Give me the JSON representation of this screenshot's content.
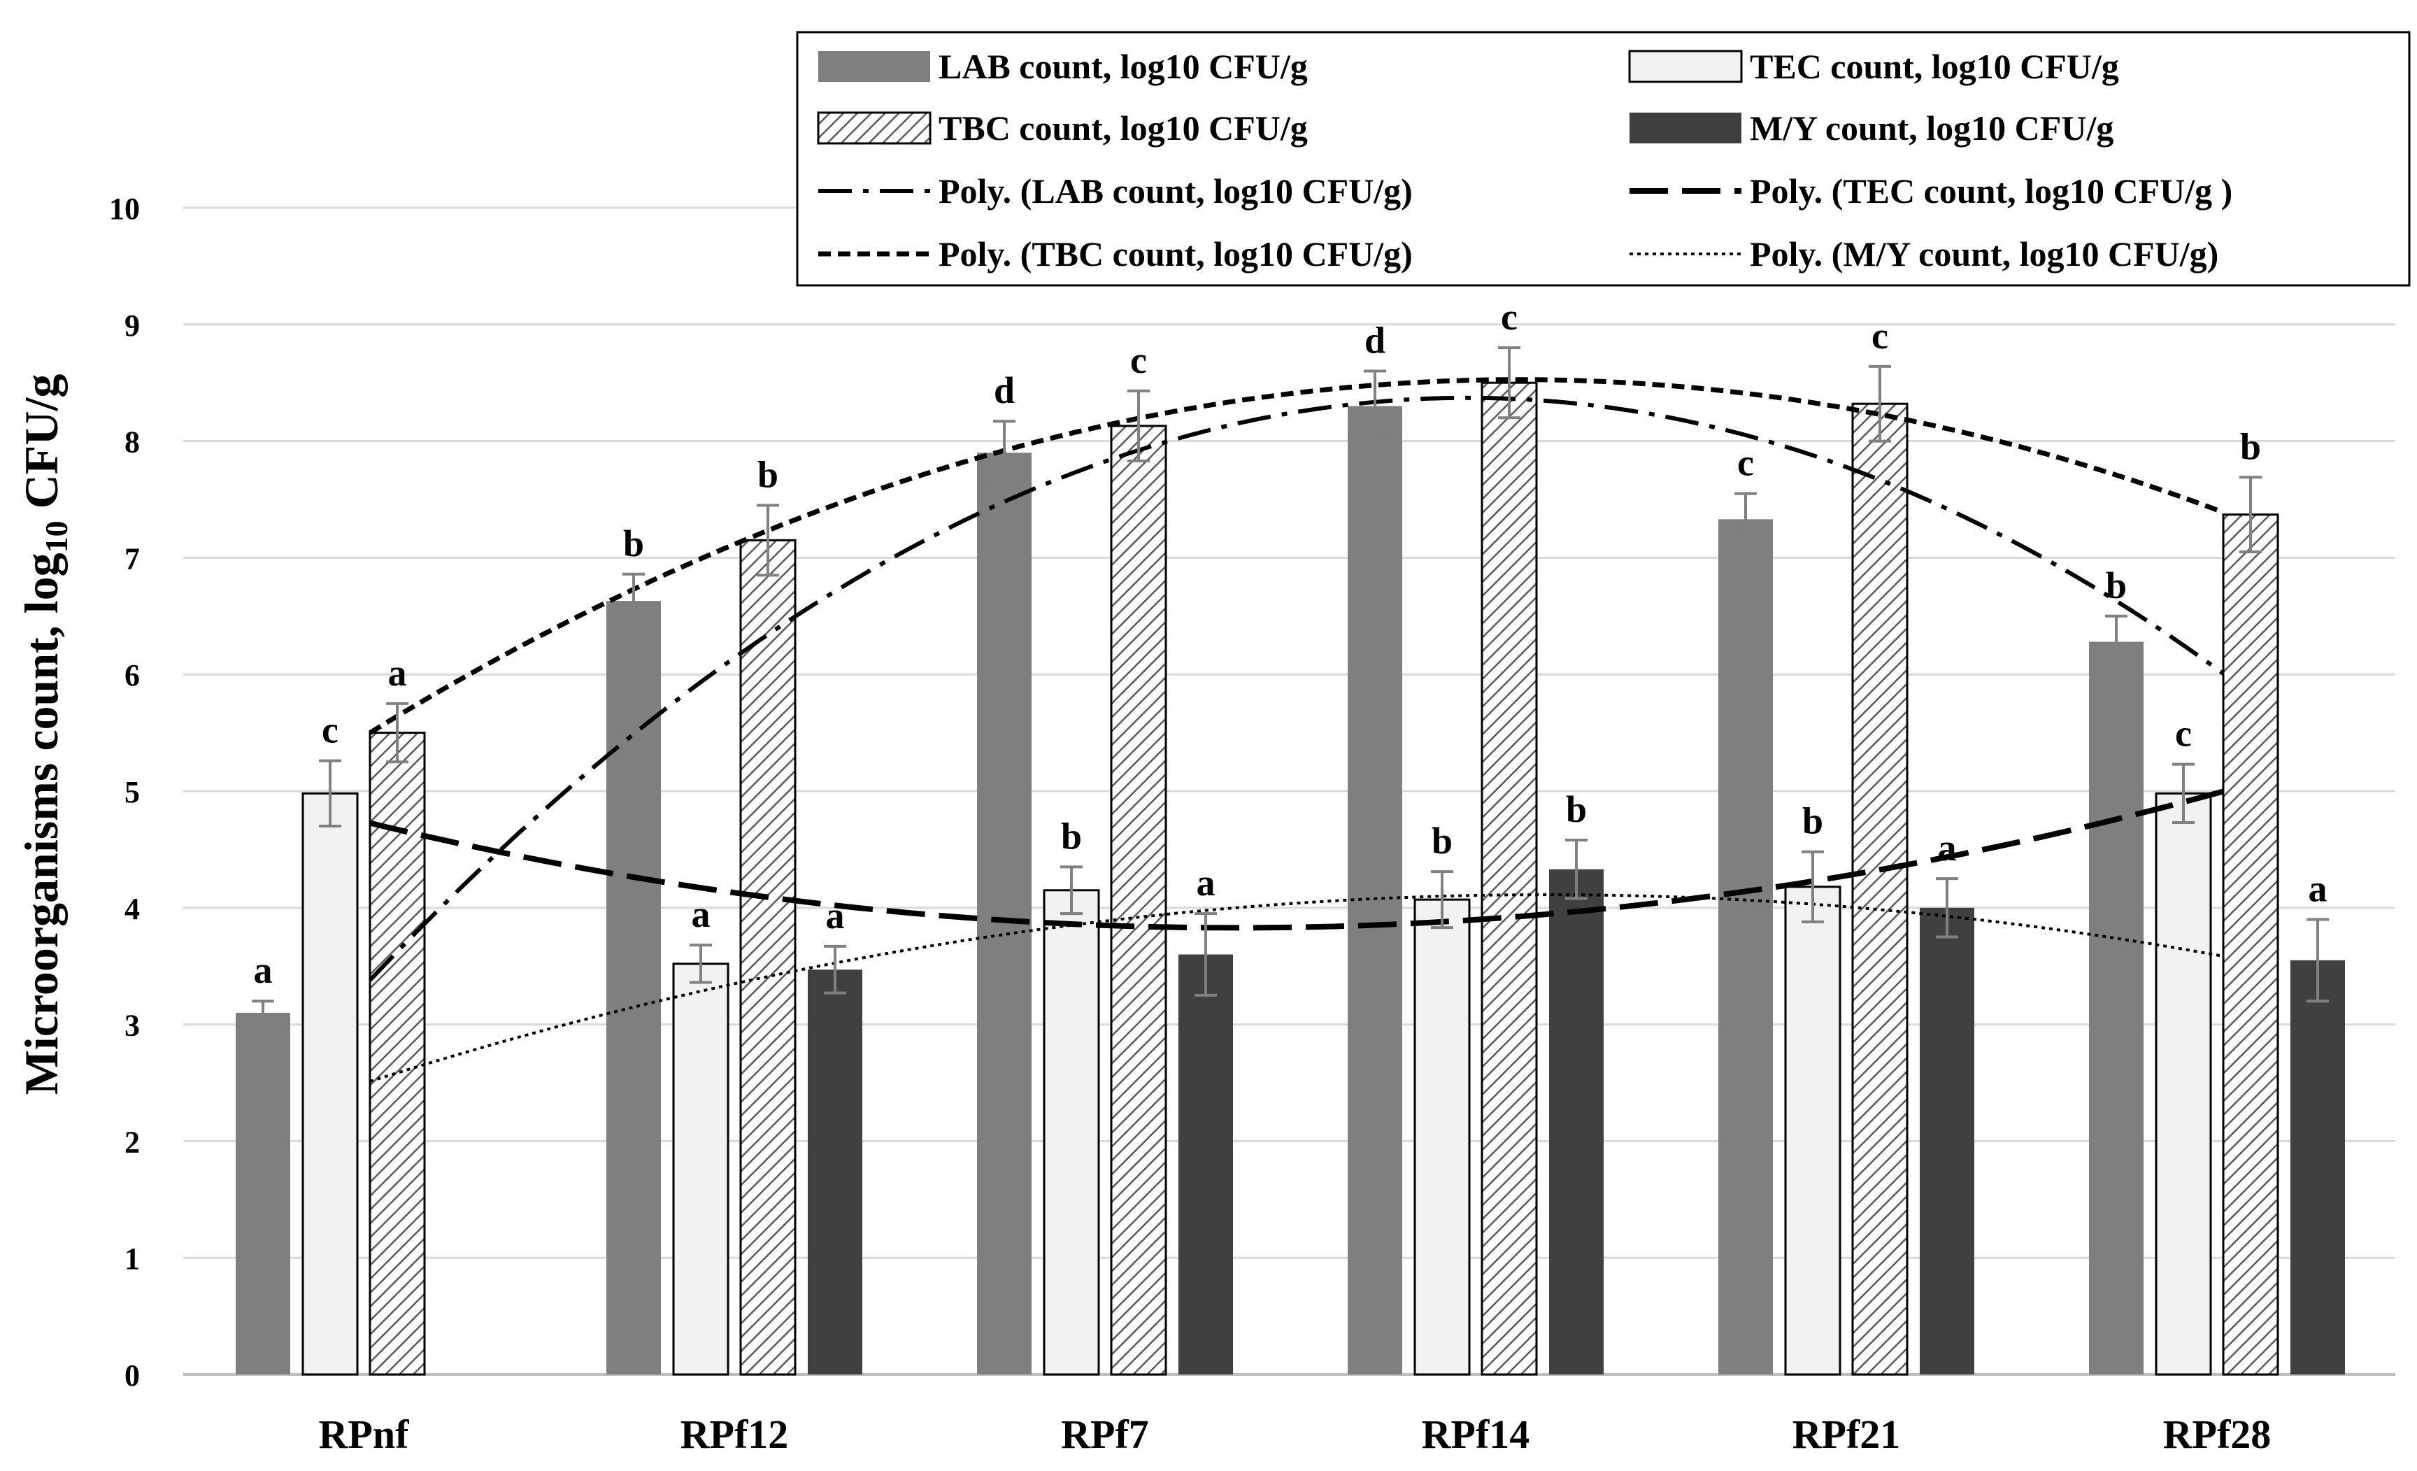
{
  "chart_data": {
    "type": "bar",
    "title": "",
    "xlabel": "",
    "ylabel": "Microorganisms count, log",
    "ylabel_sub": "10",
    "ylabel_suffix": " CFU/g",
    "ylim": [
      0,
      10
    ],
    "yticks": [
      "0",
      "1",
      "2",
      "3",
      "4",
      "5",
      "6",
      "7",
      "8",
      "9",
      "10"
    ],
    "grid": true,
    "legend_position": "top-right",
    "categories": [
      "RPnf",
      "RPf12",
      "RPf7",
      "RPf14",
      "RPf21",
      "RPf28"
    ],
    "series": [
      {
        "name": "LAB count, log10 CFU/g",
        "style": "gray",
        "values": [
          3.1,
          6.63,
          7.9,
          8.3,
          7.33,
          6.28
        ],
        "errors": [
          0.1,
          0.23,
          0.27,
          0.3,
          0.22,
          0.22
        ],
        "letters": [
          "a",
          "b",
          "d",
          "d",
          "c",
          "b"
        ]
      },
      {
        "name": "TEC count, log10 CFU/g",
        "style": "light",
        "values": [
          4.98,
          3.52,
          4.15,
          4.07,
          4.18,
          4.98
        ],
        "errors": [
          0.28,
          0.16,
          0.2,
          0.24,
          0.3,
          0.25
        ],
        "letters": [
          "c",
          "a",
          "b",
          "b",
          "b",
          "c"
        ]
      },
      {
        "name": "TBC count, log10 CFU/g",
        "style": "hatched",
        "values": [
          5.5,
          7.15,
          8.13,
          8.5,
          8.32,
          7.37
        ],
        "errors": [
          0.25,
          0.3,
          0.3,
          0.3,
          0.32,
          0.32
        ],
        "letters": [
          "a",
          "b",
          "c",
          "c",
          "c",
          "b"
        ]
      },
      {
        "name": "M/Y count, log10 CFU/g",
        "style": "dark",
        "values": [
          null,
          3.47,
          3.6,
          4.33,
          4.0,
          3.55
        ],
        "errors": [
          null,
          0.2,
          0.35,
          0.25,
          0.25,
          0.35
        ],
        "letters": [
          null,
          "a",
          "a",
          "b",
          "a",
          "a"
        ]
      }
    ],
    "trendlines": [
      {
        "name": "Poly. (LAB count, log10 CFU/g)",
        "series": 0,
        "style": "dashdot"
      },
      {
        "name": "Poly. (TEC count, log10 CFU/g )",
        "series": 1,
        "style": "longdash"
      },
      {
        "name": "Poly. (TBC count, log10 CFU/g)",
        "series": 2,
        "style": "shortdash"
      },
      {
        "name": "Poly. (M/Y count, log10 CFU/g)",
        "series": 3,
        "style": "dotted"
      }
    ]
  },
  "colors": {
    "lab": "#7f7f7f",
    "tec": "#f2f2f2",
    "tbc_bg": "#ffffff",
    "tbc_hatch": "#5a5a5a",
    "my": "#404040",
    "grid": "#d9d9d9",
    "axis": "#bfbfbf",
    "error": "#808080",
    "text": "#000000"
  }
}
